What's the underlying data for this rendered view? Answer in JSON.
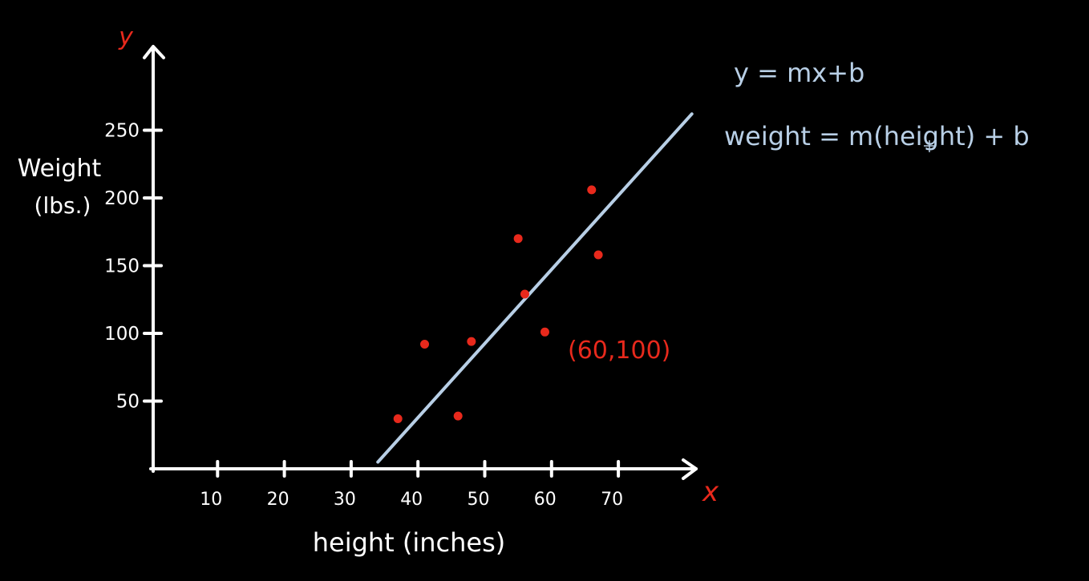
{
  "chart_data": {
    "type": "scatter",
    "axis_letters": {
      "x": "x",
      "y": "y"
    },
    "xlabel": "height (inches)",
    "ylabel_lines": [
      "Weight",
      "(lbs.)"
    ],
    "x_ticks": [
      10,
      20,
      30,
      40,
      50,
      60,
      70
    ],
    "y_ticks": [
      50,
      100,
      150,
      200,
      250
    ],
    "points": [
      {
        "x": 37,
        "y": 37
      },
      {
        "x": 41,
        "y": 92
      },
      {
        "x": 46,
        "y": 39
      },
      {
        "x": 48,
        "y": 94
      },
      {
        "x": 55,
        "y": 170
      },
      {
        "x": 56,
        "y": 129
      },
      {
        "x": 59,
        "y": 101
      },
      {
        "x": 66,
        "y": 206
      },
      {
        "x": 67,
        "y": 158
      }
    ],
    "highlight_label": "(60,100)",
    "trend_line": {
      "from": {
        "x": 34,
        "y": 5
      },
      "to": {
        "x": 81,
        "y": 262
      }
    },
    "equations": [
      "y = mx+b",
      "weight = m(height) + b"
    ],
    "colors": {
      "axes": "#ffffff",
      "points": "#e8291c",
      "axis_letters": "#e8291c",
      "line": "#b8cfe6",
      "equations": "#b8cfe6",
      "background": "#000000"
    }
  }
}
